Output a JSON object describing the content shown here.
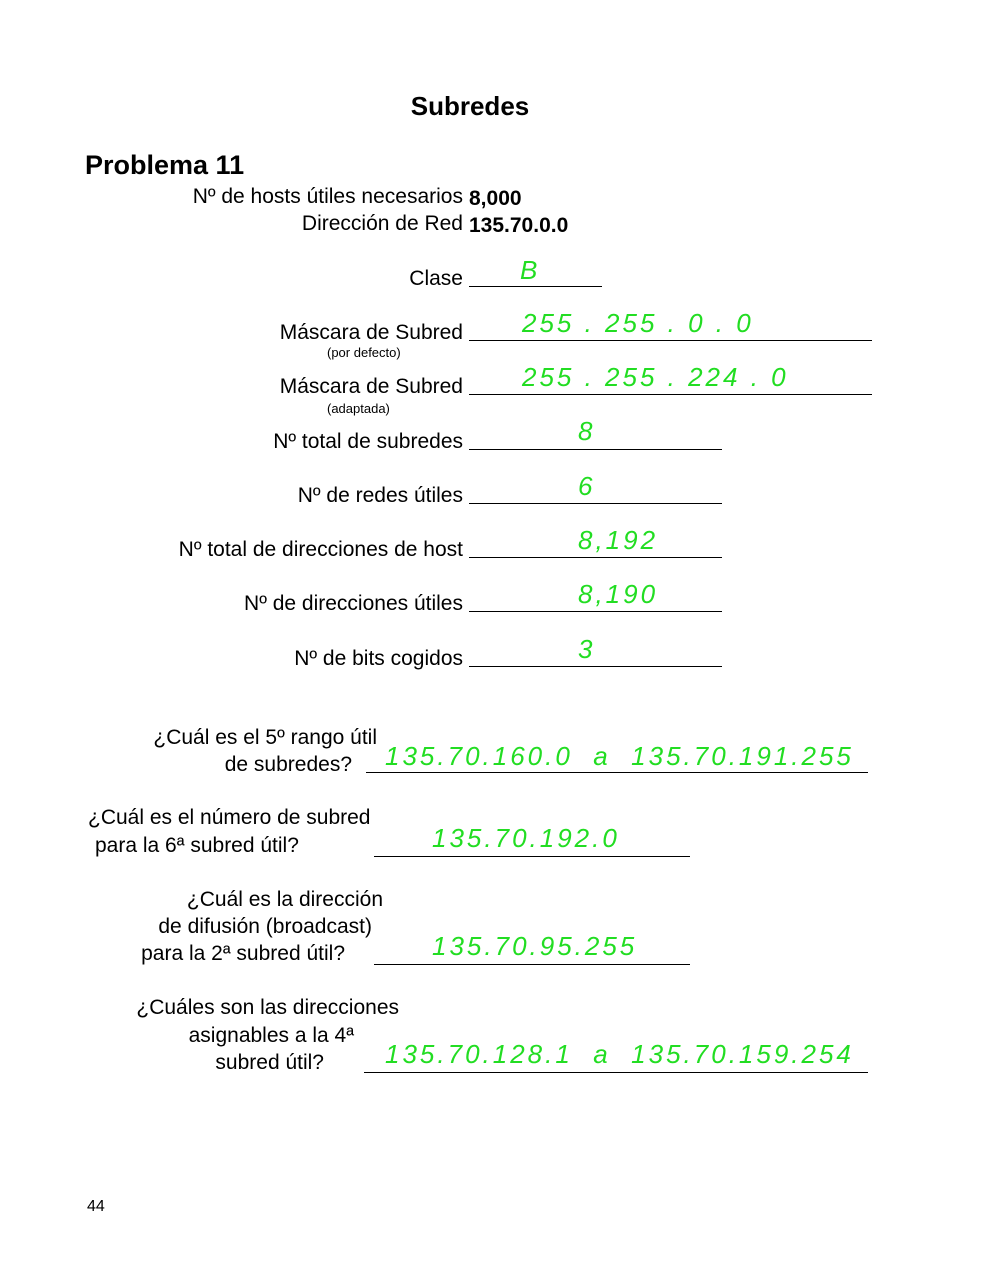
{
  "title": "Subredes",
  "problem": "Problema 11",
  "given": {
    "hosts_label": "Nº de hosts útiles necesarios",
    "hosts_value": "8,000",
    "network_label": "Dirección de Red",
    "network_value": "135.70.0.0"
  },
  "fields": [
    {
      "label": "Clase",
      "answer": "B"
    },
    {
      "label": "Máscara de Subred",
      "sublabel": "(por defecto)",
      "answer": "255 . 255 . 0 . 0"
    },
    {
      "label": "Máscara de Subred",
      "sublabel": "(adaptada)",
      "answer": "255 . 255 . 224 . 0"
    },
    {
      "label": "Nº total de subredes",
      "answer": "8"
    },
    {
      "label": "Nº de redes útiles",
      "answer": "6"
    },
    {
      "label": "Nº total de direcciones de host",
      "answer": "8,192"
    },
    {
      "label": "Nº de direcciones útiles",
      "answer": "8,190"
    },
    {
      "label": "Nº de bits cogidos",
      "answer": "3"
    }
  ],
  "questions": [
    {
      "lines": [
        "¿Cuál es el 5º rango útil",
        "de subredes?"
      ],
      "answer": "135.70.160.0  a  135.70.191.255"
    },
    {
      "lines": [
        "¿Cuál es el número de subred",
        "para la 6ª subred útil?"
      ],
      "answer": "135.70.192.0"
    },
    {
      "lines": [
        "¿Cuál es la dirección",
        "de difusión (broadcast)",
        "para la 2ª subred útil?"
      ],
      "answer": "135.70.95.255"
    },
    {
      "lines": [
        "¿Cuáles son las direcciones",
        "asignables a la 4ª",
        "subred útil?"
      ],
      "answer": "135.70.128.1  a  135.70.159.254"
    }
  ],
  "page_number": "44",
  "answer_color": "#22dd22"
}
